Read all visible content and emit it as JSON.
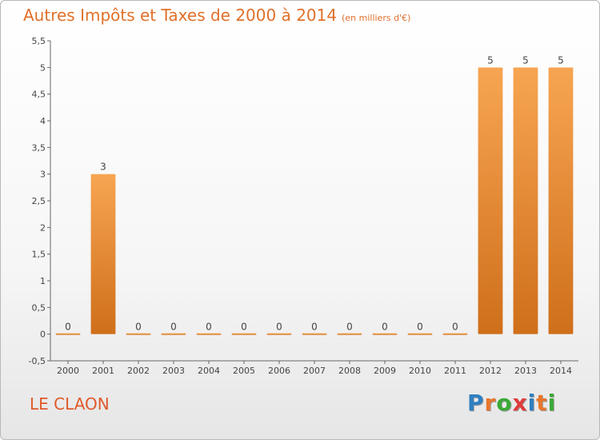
{
  "header": {
    "title": "Autres Impôts et Taxes de 2000 à 2014",
    "unit": "(en milliers d'€)"
  },
  "footer": {
    "town": "LE CLAON",
    "brand_letters": [
      "P",
      "r",
      "o",
      "x",
      "i",
      "t",
      "i"
    ],
    "brand_colors": [
      "#2f7fc1",
      "#e8762b",
      "#3aa935",
      "#e03b3b",
      "#2f7fc1",
      "#e8762b",
      "#3aa935"
    ]
  },
  "chart_data": {
    "type": "bar",
    "categories": [
      "2000",
      "2001",
      "2002",
      "2003",
      "2004",
      "2005",
      "2006",
      "2007",
      "2008",
      "2009",
      "2010",
      "2011",
      "2012",
      "2013",
      "2014"
    ],
    "values": [
      0,
      3,
      0,
      0,
      0,
      0,
      0,
      0,
      0,
      0,
      0,
      0,
      5,
      5,
      5
    ],
    "data_labels": [
      "0",
      "3",
      "0",
      "0",
      "0",
      "0",
      "0",
      "0",
      "0",
      "0",
      "0",
      "0",
      "5",
      "5",
      "5"
    ],
    "y_ticks": [
      -0.5,
      0,
      0.5,
      1,
      1.5,
      2,
      2.5,
      3,
      3.5,
      4,
      4.5,
      5,
      5.5
    ],
    "y_tick_labels": [
      "-0,5",
      "0",
      "0,5",
      "1",
      "1,5",
      "2",
      "2,5",
      "3",
      "3,5",
      "4",
      "4,5",
      "5",
      "5,5"
    ],
    "ylim": [
      -0.5,
      5.5
    ],
    "grid": false,
    "bar_color_top": "#f7a552",
    "bar_color_bottom": "#cf6f1a"
  }
}
